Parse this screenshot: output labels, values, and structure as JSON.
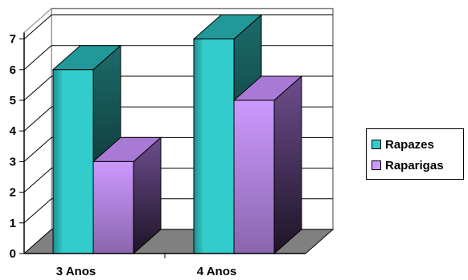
{
  "chart_data": {
    "type": "bar",
    "categories": [
      "3 Anos",
      "4 Anos"
    ],
    "series": [
      {
        "name": "Rapazes",
        "values": [
          6,
          7
        ],
        "color": "#33CCCC"
      },
      {
        "name": "Raparigas",
        "values": [
          3,
          5
        ],
        "color": "#CC99FF"
      }
    ],
    "ylim": [
      0,
      7
    ],
    "yticks": [
      0,
      1,
      2,
      3,
      4,
      5,
      6,
      7
    ],
    "grid": true,
    "style": "3d",
    "legend": "right"
  }
}
